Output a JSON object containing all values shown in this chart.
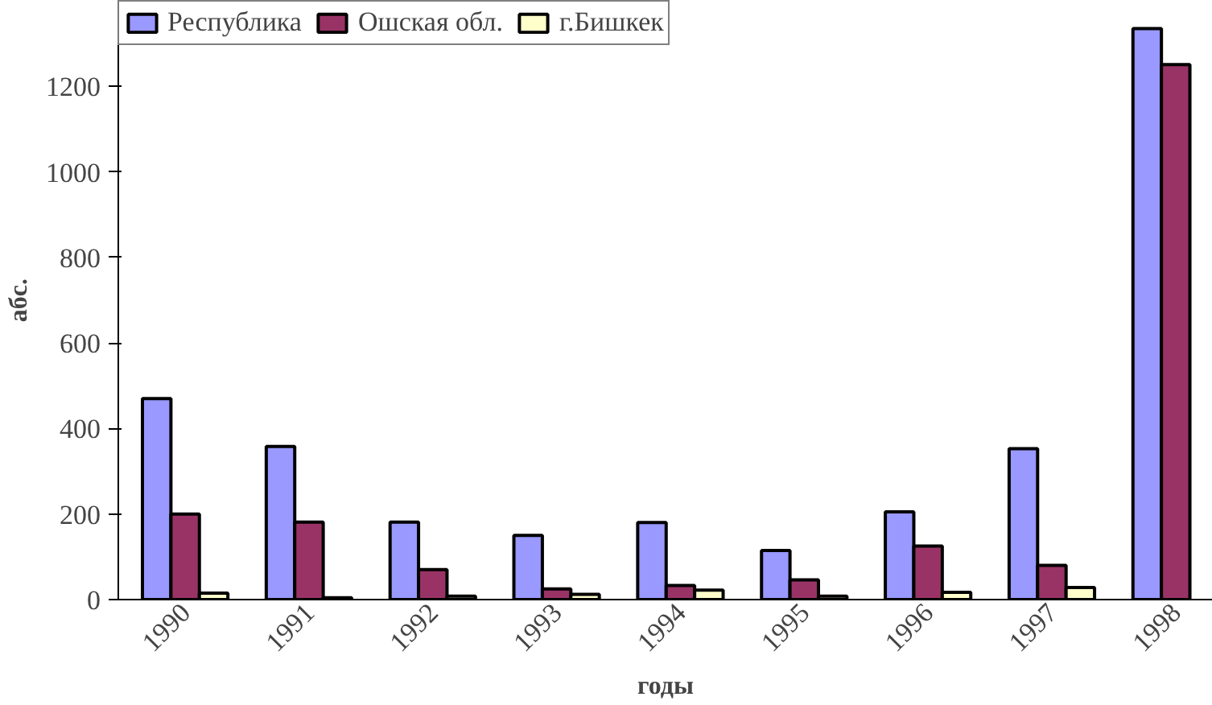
{
  "chart_data": {
    "type": "bar",
    "xlabel": "годы",
    "ylabel": "абс.",
    "categories": [
      "1990",
      "1991",
      "1992",
      "1993",
      "1994",
      "1995",
      "1996",
      "1997",
      "1998"
    ],
    "series": [
      {
        "name": "Республика",
        "color": "#9999ff",
        "values": [
          470,
          358,
          181,
          150,
          180,
          115,
          205,
          353,
          1335
        ]
      },
      {
        "name": "Ошская обл.",
        "color": "#993366",
        "values": [
          200,
          181,
          70,
          25,
          33,
          46,
          125,
          80,
          1251
        ]
      },
      {
        "name": "г.Бишкек",
        "color": "#ffffcc",
        "values": [
          15,
          4,
          8,
          12,
          22,
          8,
          17,
          28,
          null
        ]
      }
    ],
    "ylim": [
      0,
      1400
    ],
    "yticks": [
      0,
      200,
      400,
      600,
      800,
      1000,
      1200
    ],
    "grid": false,
    "legend": "top left"
  }
}
